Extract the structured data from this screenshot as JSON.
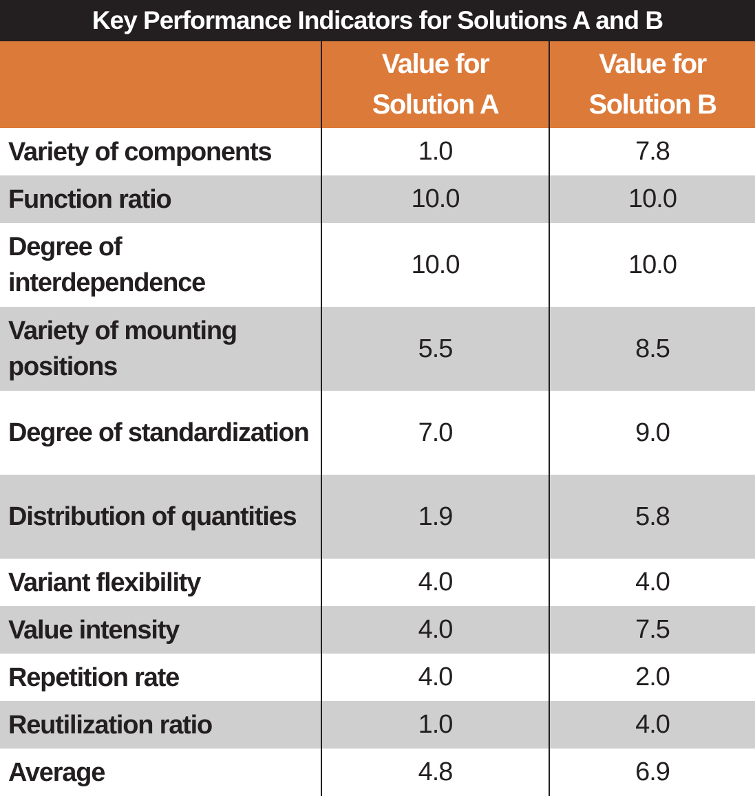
{
  "chart_data": {
    "type": "table",
    "title": "Key Performance Indicators for Solutions A and B",
    "columns": [
      "",
      "Value for Solution A",
      "Value for Solution B"
    ],
    "header_lines": {
      "a": [
        "Value for",
        "Solution A"
      ],
      "b": [
        "Value for",
        "Solution B"
      ]
    },
    "rows": [
      {
        "label": "Variety of components",
        "a": "1.0",
        "b": "7.8"
      },
      {
        "label": "Function ratio",
        "a": "10.0",
        "b": "10.0"
      },
      {
        "label": "Degree of interdependence",
        "a": "10.0",
        "b": "10.0"
      },
      {
        "label": "Variety of mounting positions",
        "a": "5.5",
        "b": "8.5"
      },
      {
        "label": "Degree of standardization",
        "a": "7.0",
        "b": "9.0"
      },
      {
        "label": "Distribution of quantities",
        "a": "1.9",
        "b": "5.8"
      },
      {
        "label": "Variant flexibility",
        "a": "4.0",
        "b": "4.0"
      },
      {
        "label": "Value intensity",
        "a": "4.0",
        "b": "7.5"
      },
      {
        "label": "Repetition rate",
        "a": "4.0",
        "b": "2.0"
      },
      {
        "label": "Reutilization ratio",
        "a": "1.0",
        "b": "4.0"
      },
      {
        "label": "Average",
        "a": "4.8",
        "b": "6.9"
      }
    ]
  },
  "colors": {
    "title_bg": "#231f20",
    "header_bg": "#dc7a3a",
    "stripe": "#cfcfcf"
  }
}
